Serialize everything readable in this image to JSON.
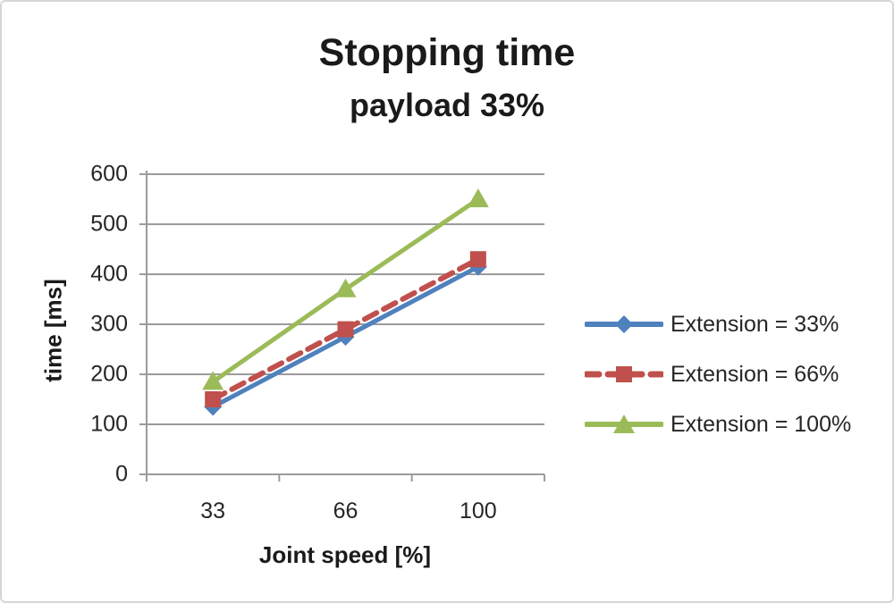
{
  "title": {
    "line1": "Stopping time",
    "line2": "payload 33%"
  },
  "chart_data": {
    "type": "line",
    "categories": [
      "33",
      "66",
      "100"
    ],
    "series": [
      {
        "name": "Extension = 33%",
        "values": [
          135,
          275,
          415
        ],
        "color": "#4f81bd",
        "marker": "diamond",
        "line_style": "solid"
      },
      {
        "name": "Extension = 66%",
        "values": [
          150,
          290,
          430
        ],
        "color": "#c0504d",
        "marker": "square",
        "line_style": "dashed"
      },
      {
        "name": "Extension = 100%",
        "values": [
          185,
          370,
          550
        ],
        "color": "#9bbb59",
        "marker": "triangle",
        "line_style": "solid"
      }
    ],
    "title": "Stopping time",
    "subtitle": "payload 33%",
    "xlabel": "Joint speed [%]",
    "ylabel": "time [ms]",
    "ylim": [
      0,
      600
    ],
    "ytick_step": 100,
    "yticks": [
      0,
      100,
      200,
      300,
      400,
      500,
      600
    ],
    "grid": true,
    "legend_position": "right",
    "draw_order": [
      2,
      0,
      1
    ],
    "colors": {
      "gridline": "#9b9b9b",
      "axis": "#9b9b9b",
      "text": "#262626",
      "title_text": "#1a1a1a"
    }
  }
}
